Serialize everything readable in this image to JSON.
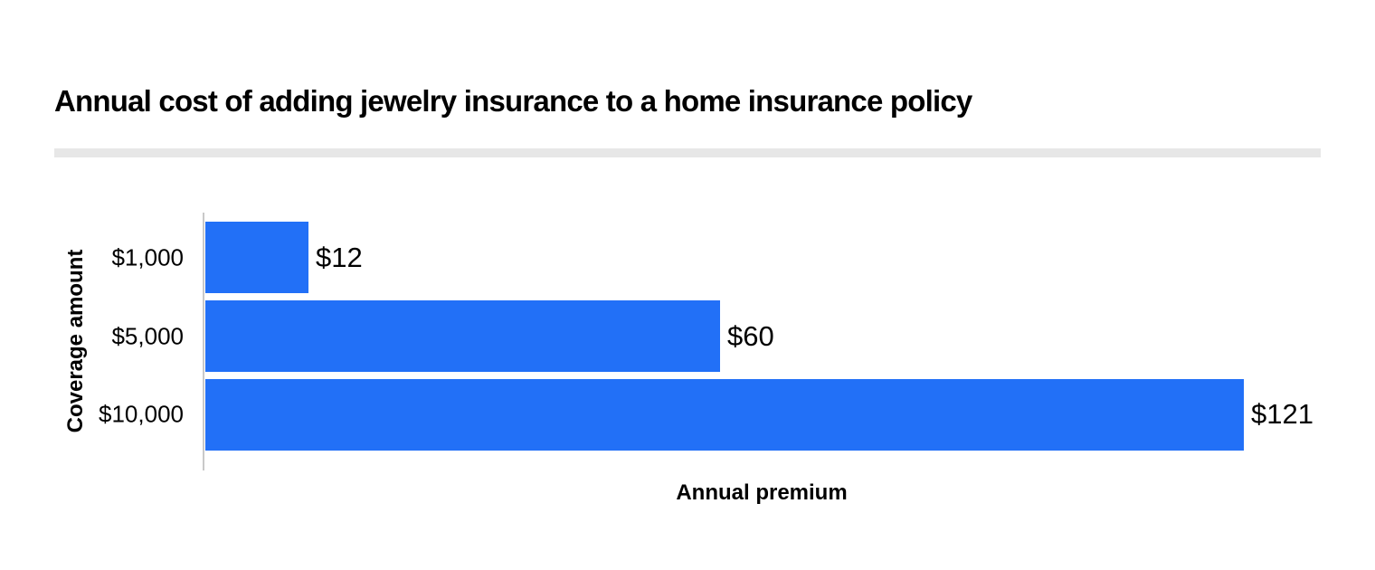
{
  "page": {
    "background_color": "#ffffff",
    "text_color": "#000000"
  },
  "chart_data": {
    "type": "bar",
    "orientation": "horizontal",
    "title": "Annual cost of adding jewelry insurance to a home insurance policy",
    "categories": [
      "$1,000",
      "$5,000",
      "$10,000"
    ],
    "values": [
      12,
      60,
      121
    ],
    "value_labels": [
      "$12",
      "$60",
      "$121"
    ],
    "xlabel": "Annual premium",
    "ylabel": "Coverage amount",
    "xlim": [
      0,
      130
    ],
    "grid": false,
    "legend": "none",
    "bar_color": "#2270f7",
    "axis_line_color": "#c9c9c9",
    "divider_color": "#e7e7e7"
  }
}
